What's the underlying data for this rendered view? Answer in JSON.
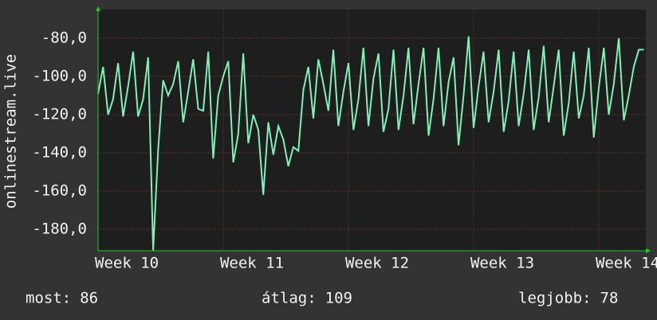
{
  "chart_data": {
    "type": "line",
    "y_label": "onlinestream.live",
    "xlim": [
      10,
      14.376
    ],
    "ylim": [
      -191.25,
      -65
    ],
    "xticks": [
      {
        "value": 10,
        "label": "Week 10"
      },
      {
        "value": 11,
        "label": "Week 11"
      },
      {
        "value": 12,
        "label": "Week 12"
      },
      {
        "value": 13,
        "label": "Week 13"
      },
      {
        "value": 14,
        "label": "Week 14"
      }
    ],
    "yticks": [
      {
        "value": -80,
        "label": "-80,0"
      },
      {
        "value": -100,
        "label": "-100,0"
      },
      {
        "value": -120,
        "label": "-120,0"
      },
      {
        "value": -140,
        "label": "-140,0"
      },
      {
        "value": -160,
        "label": "-160,0"
      },
      {
        "value": -180,
        "label": "-180,0"
      }
    ],
    "grid": true,
    "series": [
      {
        "color": "#80f0b8",
        "x": [
          10.0,
          10.04,
          10.08,
          10.12,
          10.16,
          10.2,
          10.24,
          10.28,
          10.32,
          10.36,
          10.4,
          10.44,
          10.48,
          10.52,
          10.56,
          10.6,
          10.64,
          10.68,
          10.72,
          10.76,
          10.8,
          10.84,
          10.88,
          10.92,
          10.96,
          11.0,
          11.04,
          11.08,
          11.12,
          11.16,
          11.2,
          11.24,
          11.28,
          11.32,
          11.36,
          11.4,
          11.44,
          11.48,
          11.52,
          11.56,
          11.6,
          11.64,
          11.68,
          11.72,
          11.76,
          11.8,
          11.84,
          11.88,
          11.92,
          11.96,
          12.0,
          12.04,
          12.08,
          12.12,
          12.16,
          12.2,
          12.24,
          12.28,
          12.32,
          12.36,
          12.4,
          12.44,
          12.48,
          12.52,
          12.56,
          12.6,
          12.64,
          12.68,
          12.72,
          12.76,
          12.8,
          12.84,
          12.88,
          12.92,
          12.96,
          13.0,
          13.04,
          13.08,
          13.12,
          13.16,
          13.2,
          13.24,
          13.28,
          13.32,
          13.36,
          13.4,
          13.44,
          13.48,
          13.52,
          13.56,
          13.6,
          13.64,
          13.68,
          13.72,
          13.76,
          13.8,
          13.84,
          13.88,
          13.92,
          13.96,
          14.0,
          14.04,
          14.08,
          14.12,
          14.16,
          14.2,
          14.24,
          14.28,
          14.32,
          14.36
        ],
        "values": [
          -109,
          -95,
          -120,
          -112,
          -93,
          -121,
          -105,
          -87,
          -121,
          -112,
          -90,
          -191,
          -138,
          -102,
          -110,
          -104,
          -92,
          -124,
          -108,
          -91,
          -117,
          -118,
          -87,
          -143,
          -110,
          -100,
          -92,
          -145,
          -130,
          -88,
          -135,
          -120,
          -128,
          -162,
          -124,
          -141,
          -126,
          -133,
          -147,
          -137,
          -139,
          -107,
          -95,
          -122,
          -91,
          -104,
          -118,
          -86,
          -126,
          -108,
          -93,
          -128,
          -112,
          -85,
          -126,
          -101,
          -88,
          -129,
          -117,
          -86,
          -128,
          -110,
          -85,
          -125,
          -104,
          -85,
          -131,
          -112,
          -85,
          -126,
          -103,
          -90,
          -136,
          -110,
          -79,
          -127,
          -105,
          -87,
          -124,
          -108,
          -86,
          -129,
          -113,
          -87,
          -126,
          -109,
          -86,
          -128,
          -111,
          -84,
          -124,
          -105,
          -86,
          -131,
          -114,
          -87,
          -122,
          -110,
          -85,
          -132,
          -106,
          -85,
          -120,
          -104,
          -80,
          -123,
          -110,
          -95,
          -86,
          -86
        ]
      }
    ]
  },
  "stats": [
    {
      "label": "most:",
      "value": 86
    },
    {
      "label": "átlag:",
      "value": 109
    },
    {
      "label": "legjobb:",
      "value": 78
    }
  ]
}
